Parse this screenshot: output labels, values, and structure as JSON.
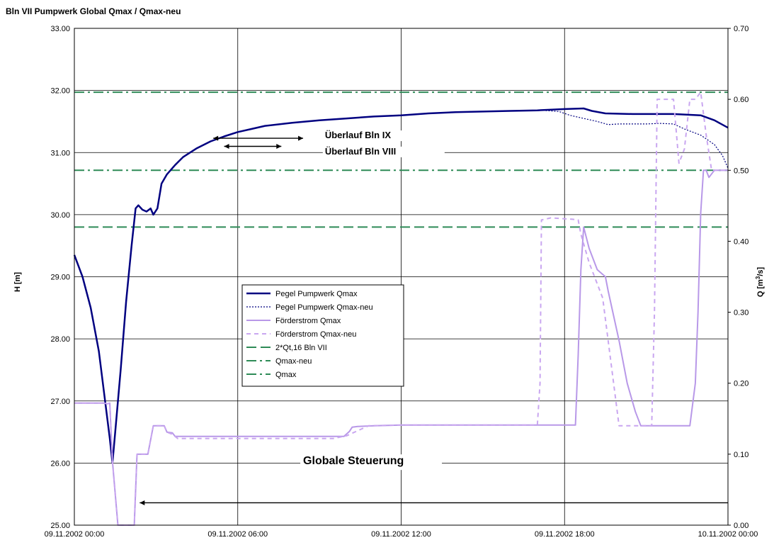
{
  "chart_data": {
    "type": "line",
    "title": "Bln VII Pumpwerk Global Qmax / Qmax-neu",
    "ylabel_left": "H [m]",
    "ylabel_right": "Q [m³/s]",
    "ylabel_right_parts": {
      "main": "Q [m",
      "sup": "3",
      "tail": "/s]"
    },
    "x_range_hours": [
      0,
      24
    ],
    "x_ticks": [
      {
        "h": 0,
        "label": "09.11.2002 00:00"
      },
      {
        "h": 6,
        "label": "09.11.2002 06:00"
      },
      {
        "h": 12,
        "label": "09.11.2002 12:00"
      },
      {
        "h": 18,
        "label": "09.11.2002 18:00"
      },
      {
        "h": 24,
        "label": "10.11.2002 00:00"
      }
    ],
    "ylim_left": [
      25,
      33
    ],
    "y_ticks_left": [
      "25.00",
      "26.00",
      "27.00",
      "28.00",
      "29.00",
      "30.00",
      "31.00",
      "32.00",
      "33.00"
    ],
    "ylim_right": [
      0,
      0.7
    ],
    "y_ticks_right": [
      "0.00",
      "0.10",
      "0.20",
      "0.30",
      "0.40",
      "0.50",
      "0.60",
      "0.70"
    ],
    "grid": true,
    "legend_position": "center-left",
    "series": [
      {
        "name": "Pegel Pumpwerk Qmax",
        "axis": "left",
        "color": "#000080",
        "style": "solid",
        "width": 2.5,
        "points": [
          [
            0,
            29.35
          ],
          [
            0.3,
            29.0
          ],
          [
            0.6,
            28.5
          ],
          [
            0.9,
            27.8
          ],
          [
            1.1,
            27.1
          ],
          [
            1.3,
            26.4
          ],
          [
            1.4,
            26.0
          ],
          [
            1.5,
            26.5
          ],
          [
            1.7,
            27.5
          ],
          [
            1.9,
            28.6
          ],
          [
            2.1,
            29.5
          ],
          [
            2.25,
            30.1
          ],
          [
            2.35,
            30.15
          ],
          [
            2.5,
            30.08
          ],
          [
            2.65,
            30.05
          ],
          [
            2.8,
            30.1
          ],
          [
            2.9,
            30.0
          ],
          [
            3.05,
            30.1
          ],
          [
            3.2,
            30.5
          ],
          [
            3.4,
            30.65
          ],
          [
            3.7,
            30.8
          ],
          [
            4,
            30.93
          ],
          [
            4.5,
            31.07
          ],
          [
            5,
            31.18
          ],
          [
            5.5,
            31.26
          ],
          [
            6,
            31.33
          ],
          [
            6.5,
            31.38
          ],
          [
            7,
            31.43
          ],
          [
            8,
            31.48
          ],
          [
            9,
            31.52
          ],
          [
            10,
            31.55
          ],
          [
            11,
            31.58
          ],
          [
            12,
            31.6
          ],
          [
            13,
            31.63
          ],
          [
            14,
            31.65
          ],
          [
            15,
            31.66
          ],
          [
            16,
            31.67
          ],
          [
            17,
            31.68
          ],
          [
            18,
            31.7
          ],
          [
            18.7,
            31.71
          ],
          [
            19,
            31.67
          ],
          [
            19.5,
            31.63
          ],
          [
            20.5,
            31.62
          ],
          [
            22,
            31.62
          ],
          [
            23,
            31.6
          ],
          [
            23.5,
            31.52
          ],
          [
            24,
            31.4
          ]
        ]
      },
      {
        "name": "Pegel Pumpwerk Qmax-neu",
        "axis": "left",
        "color": "#000080",
        "style": "dotted",
        "width": 1.2,
        "points": [
          [
            17.2,
            31.68
          ],
          [
            17.8,
            31.66
          ],
          [
            18.2,
            31.6
          ],
          [
            18.7,
            31.55
          ],
          [
            19.2,
            31.5
          ],
          [
            19.6,
            31.45
          ],
          [
            20,
            31.46
          ],
          [
            21,
            31.46
          ],
          [
            21.5,
            31.47
          ],
          [
            22,
            31.46
          ],
          [
            22.4,
            31.38
          ],
          [
            23,
            31.28
          ],
          [
            23.5,
            31.13
          ],
          [
            23.8,
            30.95
          ],
          [
            24,
            30.75
          ]
        ]
      },
      {
        "name": "Förderstrom Qmax",
        "axis": "right",
        "color": "#B898E8",
        "style": "solid",
        "width": 2,
        "points": [
          [
            0,
            0.172
          ],
          [
            1.1,
            0.172
          ],
          [
            1.2,
            0.171
          ],
          [
            1.3,
            0.172
          ],
          [
            1.4,
            0.09
          ],
          [
            1.6,
            0.0
          ],
          [
            2.1,
            0.0
          ],
          [
            2.2,
            0.0
          ],
          [
            2.3,
            0.1
          ],
          [
            2.6,
            0.1
          ],
          [
            2.7,
            0.1
          ],
          [
            2.9,
            0.14
          ],
          [
            3.0,
            0.14
          ],
          [
            3.3,
            0.14
          ],
          [
            3.4,
            0.131
          ],
          [
            3.6,
            0.13
          ],
          [
            3.7,
            0.125
          ],
          [
            4.5,
            0.125
          ],
          [
            6,
            0.125
          ],
          [
            8,
            0.125
          ],
          [
            9,
            0.125
          ],
          [
            9.9,
            0.125
          ],
          [
            10.1,
            0.132
          ],
          [
            10.2,
            0.138
          ],
          [
            10.4,
            0.139
          ],
          [
            11,
            0.14
          ],
          [
            12,
            0.141
          ],
          [
            14,
            0.141
          ],
          [
            16,
            0.141
          ],
          [
            18,
            0.141
          ],
          [
            18.4,
            0.141
          ],
          [
            18.5,
            0.24
          ],
          [
            18.6,
            0.36
          ],
          [
            18.7,
            0.42
          ],
          [
            18.9,
            0.39
          ],
          [
            19.2,
            0.36
          ],
          [
            19.5,
            0.35
          ],
          [
            19.6,
            0.33
          ],
          [
            20,
            0.26
          ],
          [
            20.3,
            0.2
          ],
          [
            20.6,
            0.16
          ],
          [
            20.8,
            0.14
          ],
          [
            22,
            0.14
          ],
          [
            22.4,
            0.14
          ],
          [
            22.6,
            0.14
          ],
          [
            22.8,
            0.2
          ],
          [
            22.9,
            0.3
          ],
          [
            23.0,
            0.44
          ],
          [
            23.1,
            0.5
          ],
          [
            23.2,
            0.5
          ],
          [
            23.3,
            0.49
          ],
          [
            23.5,
            0.5
          ],
          [
            24,
            0.5
          ]
        ]
      },
      {
        "name": "Förderstrom Qmax-neu",
        "axis": "right",
        "color": "#C9A6F0",
        "style": "dashed",
        "width": 2,
        "points": [
          [
            0,
            0.172
          ],
          [
            1.1,
            0.172
          ],
          [
            1.2,
            0.171
          ],
          [
            1.3,
            0.172
          ],
          [
            1.4,
            0.09
          ],
          [
            1.6,
            0.0
          ],
          [
            2.1,
            0.0
          ],
          [
            2.2,
            0.0
          ],
          [
            2.3,
            0.1
          ],
          [
            2.6,
            0.1
          ],
          [
            2.7,
            0.1
          ],
          [
            2.9,
            0.14
          ],
          [
            3.0,
            0.14
          ],
          [
            3.3,
            0.14
          ],
          [
            3.4,
            0.131
          ],
          [
            3.6,
            0.128
          ],
          [
            3.8,
            0.122
          ],
          [
            6,
            0.122
          ],
          [
            8,
            0.122
          ],
          [
            9.5,
            0.122
          ],
          [
            10,
            0.126
          ],
          [
            10.4,
            0.133
          ],
          [
            10.8,
            0.14
          ],
          [
            12,
            0.141
          ],
          [
            14,
            0.141
          ],
          [
            16,
            0.141
          ],
          [
            17.0,
            0.141
          ],
          [
            17.1,
            0.2
          ],
          [
            17.15,
            0.43
          ],
          [
            17.5,
            0.433
          ],
          [
            18.3,
            0.431
          ],
          [
            18.5,
            0.43
          ],
          [
            18.6,
            0.41
          ],
          [
            18.9,
            0.37
          ],
          [
            19.2,
            0.34
          ],
          [
            19.4,
            0.32
          ],
          [
            19.6,
            0.26
          ],
          [
            19.8,
            0.2
          ],
          [
            20,
            0.14
          ],
          [
            20.2,
            0.14
          ],
          [
            21.2,
            0.14
          ],
          [
            21.3,
            0.3
          ],
          [
            21.4,
            0.6
          ],
          [
            21.9,
            0.6
          ],
          [
            22.0,
            0.6
          ],
          [
            22.2,
            0.51
          ],
          [
            22.4,
            0.53
          ],
          [
            22.6,
            0.6
          ],
          [
            22.8,
            0.6
          ],
          [
            23.0,
            0.61
          ],
          [
            23.2,
            0.55
          ],
          [
            23.4,
            0.5
          ],
          [
            24,
            0.5
          ]
        ]
      },
      {
        "name": "2*Qt,16 Bln VII",
        "axis": "right",
        "color": "#2E8B57",
        "style": "dash",
        "width": 2,
        "value": 0.42
      },
      {
        "name": "Qmax-neu",
        "axis": "right",
        "color": "#2E8B57",
        "style": "dashdot",
        "width": 2,
        "value": 0.5
      },
      {
        "name": "Qmax",
        "axis": "right",
        "color": "#2E8B57",
        "style": "dashdot",
        "width": 2,
        "value": 0.61
      }
    ],
    "annotations": [
      {
        "text": "Überlauf Bln IX",
        "arrow_h": [
          5.1,
          8.4
        ],
        "arrow_y": 31.23,
        "text_h": 9.2,
        "text_y": 31.23
      },
      {
        "text": "Überlauf Bln VIII",
        "arrow_h": [
          5.5,
          7.6
        ],
        "arrow_y": 31.1,
        "text_h": 9.2,
        "text_y": 30.97
      },
      {
        "text": "Globale Steuerung",
        "arrow_h": [
          24,
          2.4
        ],
        "arrow_y": 25.36,
        "text_h": 8.4,
        "text_y": 25.98
      }
    ]
  }
}
